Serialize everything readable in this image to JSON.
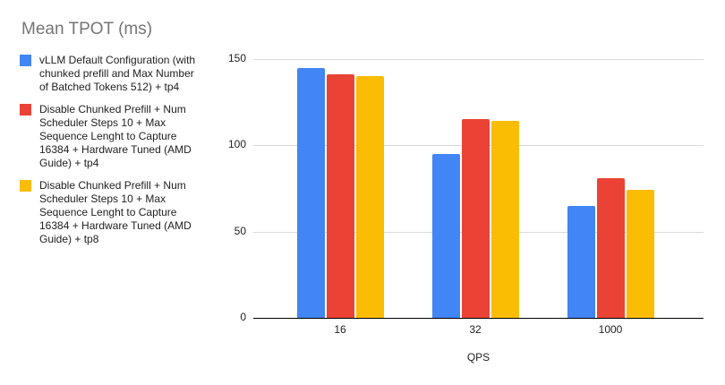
{
  "title": "Mean TPOT (ms)",
  "colors": {
    "series_blue": "#4285F4",
    "series_red": "#EA4335",
    "series_yellow": "#FBBC04",
    "title_text": "#757575",
    "axis_text": "#212121",
    "gridline": "#d9d9d9",
    "baseline": "#000000",
    "background": "#ffffff"
  },
  "legend": {
    "items": [
      {
        "color": "#4285F4",
        "lines": [
          "vLLM Default Configuration (with",
          "chunked prefill and Max Number",
          "of Batched Tokens 512) + tp4"
        ]
      },
      {
        "color": "#EA4335",
        "lines": [
          "Disable Chunked Prefill + Num",
          "Scheduler Steps 10 + Max",
          "Sequence Lenght to Capture",
          "16384 + Hardware Tuned (AMD",
          "Guide) + tp4"
        ]
      },
      {
        "color": "#FBBC04",
        "lines": [
          "Disable Chunked Prefill + Num",
          "Scheduler Steps 10 + Max",
          "Sequence Lenght to Capture",
          "16384 + Hardware Tuned (AMD",
          "Guide) + tp8"
        ]
      }
    ]
  },
  "chart_data": {
    "type": "bar",
    "title": "Mean TPOT (ms)",
    "xlabel": "QPS",
    "ylabel": "",
    "categories": [
      "16",
      "32",
      "1000"
    ],
    "series": [
      {
        "name": "vLLM Default Configuration (with chunked prefill and Max Number of Batched Tokens 512) + tp4",
        "color": "#4285F4",
        "values": [
          145,
          95,
          65
        ]
      },
      {
        "name": "Disable Chunked Prefill + Num Scheduler Steps 10 + Max Sequence Lenght to Capture 16384 + Hardware Tuned (AMD Guide) + tp4",
        "color": "#EA4335",
        "values": [
          141,
          115,
          81
        ]
      },
      {
        "name": "Disable Chunked Prefill + Num Scheduler Steps 10 + Max Sequence Lenght to Capture 16384 + Hardware Tuned (AMD Guide) + tp8",
        "color": "#FBBC04",
        "values": [
          140,
          114,
          74
        ]
      }
    ],
    "ylim": [
      0,
      150
    ],
    "yticks": [
      0,
      50,
      100,
      150
    ],
    "grid": true,
    "legend_position": "left"
  }
}
